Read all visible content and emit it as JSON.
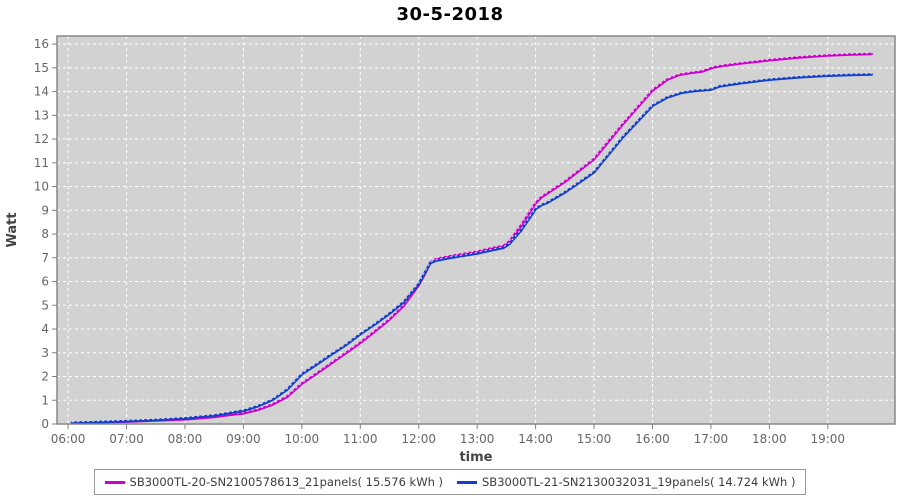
{
  "chart_data": {
    "type": "line",
    "title": "30-5-2018",
    "xlabel": "time",
    "ylabel": "Watt",
    "xlim": [
      5.81,
      20.15
    ],
    "ylim": [
      0,
      16.34
    ],
    "grid": true,
    "legend_position": "bottom",
    "plot_bg_color": "#d2d2d2",
    "grid_color": "#ffffff",
    "border_color": "#878787",
    "tick_color": "#808080",
    "tick_label_color": "#666666",
    "x_ticks": {
      "values": [
        6,
        7,
        8,
        9,
        10,
        11,
        12,
        13,
        14,
        15,
        16,
        17,
        18,
        19
      ],
      "labels": [
        "06:00",
        "07:00",
        "08:00",
        "09:00",
        "10:00",
        "11:00",
        "12:00",
        "13:00",
        "14:00",
        "15:00",
        "16:00",
        "17:00",
        "18:00",
        "19:00"
      ]
    },
    "y_ticks": {
      "values": [
        0,
        1,
        2,
        3,
        4,
        5,
        6,
        7,
        8,
        9,
        10,
        11,
        12,
        13,
        14,
        15,
        16
      ],
      "labels": [
        "0",
        "1",
        "2",
        "3",
        "4",
        "5",
        "6",
        "7",
        "8",
        "9",
        "10",
        "11",
        "12",
        "13",
        "14",
        "15",
        "16"
      ]
    },
    "series": [
      {
        "name": "SB3000TL-20-SN2100578613_21panels( 15.576 kWh )",
        "color": "#cc00cc",
        "total_kwh": 15.576,
        "points": [
          [
            6.07,
            0.05
          ],
          [
            6.5,
            0.07
          ],
          [
            7.0,
            0.1
          ],
          [
            7.5,
            0.15
          ],
          [
            8.0,
            0.2
          ],
          [
            8.5,
            0.3
          ],
          [
            8.75,
            0.38
          ],
          [
            9.0,
            0.45
          ],
          [
            9.25,
            0.6
          ],
          [
            9.5,
            0.82
          ],
          [
            9.75,
            1.15
          ],
          [
            10.0,
            1.7
          ],
          [
            10.25,
            2.12
          ],
          [
            10.5,
            2.55
          ],
          [
            10.75,
            2.98
          ],
          [
            11.0,
            3.42
          ],
          [
            11.25,
            3.9
          ],
          [
            11.5,
            4.4
          ],
          [
            11.75,
            5.0
          ],
          [
            12.0,
            5.85
          ],
          [
            12.1,
            6.3
          ],
          [
            12.2,
            6.8
          ],
          [
            12.3,
            6.95
          ],
          [
            12.5,
            7.05
          ],
          [
            12.75,
            7.15
          ],
          [
            13.0,
            7.25
          ],
          [
            13.25,
            7.4
          ],
          [
            13.45,
            7.5
          ],
          [
            13.55,
            7.68
          ],
          [
            13.75,
            8.35
          ],
          [
            14.0,
            9.3
          ],
          [
            14.1,
            9.55
          ],
          [
            14.5,
            10.2
          ],
          [
            15.0,
            11.15
          ],
          [
            15.5,
            12.65
          ],
          [
            16.0,
            14.05
          ],
          [
            16.25,
            14.5
          ],
          [
            16.45,
            14.7
          ],
          [
            16.65,
            14.78
          ],
          [
            16.85,
            14.85
          ],
          [
            17.05,
            15.02
          ],
          [
            17.25,
            15.1
          ],
          [
            17.5,
            15.18
          ],
          [
            18.0,
            15.32
          ],
          [
            18.5,
            15.44
          ],
          [
            19.0,
            15.52
          ],
          [
            19.4,
            15.56
          ],
          [
            19.75,
            15.58
          ]
        ]
      },
      {
        "name": "SB3000TL-21-SN2130032031_19panels( 14.724 kWh )",
        "color": "#1440c8",
        "total_kwh": 14.724,
        "points": [
          [
            6.07,
            0.05
          ],
          [
            6.5,
            0.08
          ],
          [
            7.0,
            0.12
          ],
          [
            7.5,
            0.17
          ],
          [
            8.0,
            0.24
          ],
          [
            8.5,
            0.36
          ],
          [
            8.75,
            0.46
          ],
          [
            9.0,
            0.56
          ],
          [
            9.25,
            0.75
          ],
          [
            9.5,
            1.02
          ],
          [
            9.75,
            1.45
          ],
          [
            10.0,
            2.1
          ],
          [
            10.25,
            2.5
          ],
          [
            10.5,
            2.92
          ],
          [
            10.75,
            3.32
          ],
          [
            11.0,
            3.78
          ],
          [
            11.25,
            4.2
          ],
          [
            11.5,
            4.65
          ],
          [
            11.75,
            5.15
          ],
          [
            12.0,
            5.9
          ],
          [
            12.1,
            6.35
          ],
          [
            12.2,
            6.78
          ],
          [
            12.3,
            6.88
          ],
          [
            12.5,
            6.98
          ],
          [
            12.75,
            7.08
          ],
          [
            13.0,
            7.18
          ],
          [
            13.25,
            7.32
          ],
          [
            13.45,
            7.42
          ],
          [
            13.55,
            7.58
          ],
          [
            13.75,
            8.15
          ],
          [
            14.0,
            9.05
          ],
          [
            14.1,
            9.22
          ],
          [
            14.2,
            9.32
          ],
          [
            14.5,
            9.75
          ],
          [
            15.0,
            10.6
          ],
          [
            15.5,
            12.1
          ],
          [
            16.0,
            13.4
          ],
          [
            16.25,
            13.75
          ],
          [
            16.5,
            13.95
          ],
          [
            16.7,
            14.02
          ],
          [
            17.0,
            14.08
          ],
          [
            17.15,
            14.22
          ],
          [
            17.5,
            14.35
          ],
          [
            18.0,
            14.5
          ],
          [
            18.5,
            14.6
          ],
          [
            19.0,
            14.67
          ],
          [
            19.4,
            14.7
          ],
          [
            19.75,
            14.72
          ]
        ]
      }
    ]
  }
}
